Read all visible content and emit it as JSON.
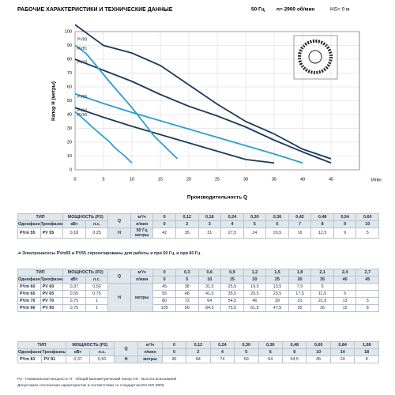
{
  "header": {
    "title": "РАБОЧИЕ ХАРАКТЕРИСТИКИ И ТЕХНИЧЕСКИЕ ДАННЫЕ",
    "freq": "50 Гц",
    "speed": "n= 2900 об/мин",
    "suction": "HS= 0 м"
  },
  "chart": {
    "ylabel": "Напор H (метры)",
    "xlabel": "Производительность Q",
    "xunit": "l/min",
    "xlim": [
      0,
      50
    ],
    "ylim": [
      0,
      100
    ],
    "xticks": [
      0,
      5,
      10,
      15,
      20,
      25,
      30,
      35,
      40,
      45
    ],
    "yticks": [
      0,
      10,
      20,
      30,
      40,
      50,
      60,
      70,
      80,
      90,
      100
    ],
    "labels": [
      "PV55",
      "PV60",
      "PV65",
      "PV70",
      "PV90",
      "PV81"
    ],
    "colors": [
      "#2a9fd0",
      "#1b3a5c",
      "#2a9fd0",
      "#1b3a5c",
      "#1b3a5c",
      "#2a9fd0"
    ]
  },
  "tables": [
    {
      "type": "ТИП",
      "single": "Однофазный",
      "three": "Трехфазный",
      "power": "МОЩНОСТЬ (P2)",
      "kw": "кВт",
      "hp": "л.с.",
      "q": "Q",
      "m3h": "м³/ч",
      "lmin": "л/мин",
      "h": "H",
      "hfreq": "50 Гц",
      "hunit": "метры",
      "q_m3h": [
        "0",
        "0,12",
        "0,18",
        "0,24",
        "0,30",
        "0,36",
        "0,42",
        "0,48",
        "0,54",
        "0,60"
      ],
      "q_lmin": [
        "0",
        "2",
        "3",
        "4",
        "5",
        "6",
        "7",
        "8",
        "9",
        "10"
      ],
      "rows": [
        {
          "single": "PVm 55",
          "three": "PV 55",
          "kw": "0,18",
          "hp": "0,25",
          "h": [
            "42",
            "35",
            "31",
            "27,5",
            "24",
            "20,5",
            "16",
            "12,5",
            "9",
            "5"
          ]
        }
      ]
    },
    {
      "type": "ТИП",
      "single": "Однофазный",
      "three": "Трехфазный",
      "power": "МОЩНОСТЬ (P2)",
      "kw": "кВт",
      "hp": "л.с.",
      "q": "Q",
      "m3h": "м³/ч",
      "lmin": "л/мин",
      "h": "H",
      "hunit": "метры",
      "q_m3h": [
        "0",
        "0,3",
        "0,6",
        "0,9",
        "1,2",
        "1,5",
        "1,8",
        "2,1",
        "2,4",
        "2,7"
      ],
      "q_lmin": [
        "0",
        "5",
        "10",
        "15",
        "20",
        "25",
        "30",
        "35",
        "40",
        "45"
      ],
      "rows": [
        {
          "single": "PVm 60",
          "three": "PV 60",
          "kw": "0,37",
          "hp": "0,50",
          "h": [
            "45",
            "38",
            "31,5",
            "25,5",
            "19,5",
            "13,5",
            "7,5",
            "5"
          ]
        },
        {
          "single": "PVm 65",
          "three": "PV 65",
          "kw": "0,55",
          "hp": "0,75",
          "h": [
            "55",
            "48",
            "41,5",
            "35,5",
            "29,5",
            "23,5",
            "17,5",
            "11,5",
            "5"
          ]
        },
        {
          "single": "PVm 70",
          "three": "PV 70",
          "kw": "0,75",
          "hp": "1",
          "h": [
            "80",
            "72",
            "64",
            "54,5",
            "46",
            "39",
            "31",
            "21,5",
            "13",
            "5"
          ]
        },
        {
          "single": "PVm 90",
          "three": "PV 90",
          "kw": "0,75",
          "hp": "1",
          "h": [
            "105",
            "90",
            "84,5",
            "75,5",
            "61,5",
            "47,5",
            "35",
            "26",
            "15",
            "8"
          ]
        }
      ]
    },
    {
      "type": "ТИП",
      "single": "Однофазный",
      "three": "Трехфазный",
      "power": "МОЩНОСТЬ (P2)",
      "kw": "кВт",
      "hp": "л.с.",
      "q": "Q",
      "m3h": "м³/ч",
      "lmin": "л/мин",
      "h": "H",
      "hunit": "метры",
      "q_m3h": [
        "0",
        "0,12",
        "0,24",
        "0,30",
        "0,36",
        "0,48",
        "0,60",
        "0,84",
        "1,08"
      ],
      "q_lmin": [
        "0",
        "2",
        "4",
        "5",
        "6",
        "8",
        "10",
        "14",
        "18"
      ],
      "rows": [
        {
          "single": "PVm 81",
          "three": "PV 81",
          "kw": "0,37",
          "hp": "0,50",
          "h": [
            "90",
            "84",
            "74",
            "69",
            "64",
            "54,5",
            "45",
            "24",
            "8"
          ]
        }
      ]
    }
  ],
  "note": "➜ Электронасосы PVm55 и PV55 спроектированы для работы и при 50 Гц, и при 60 Гц",
  "footer": [
    "P2 - Номинальная мощность   H - Общий манометрический напор   HS - Высота всасывания",
    "Допустимое отклонение характеристик в соответствии со стандартом EN ISO 9906."
  ]
}
